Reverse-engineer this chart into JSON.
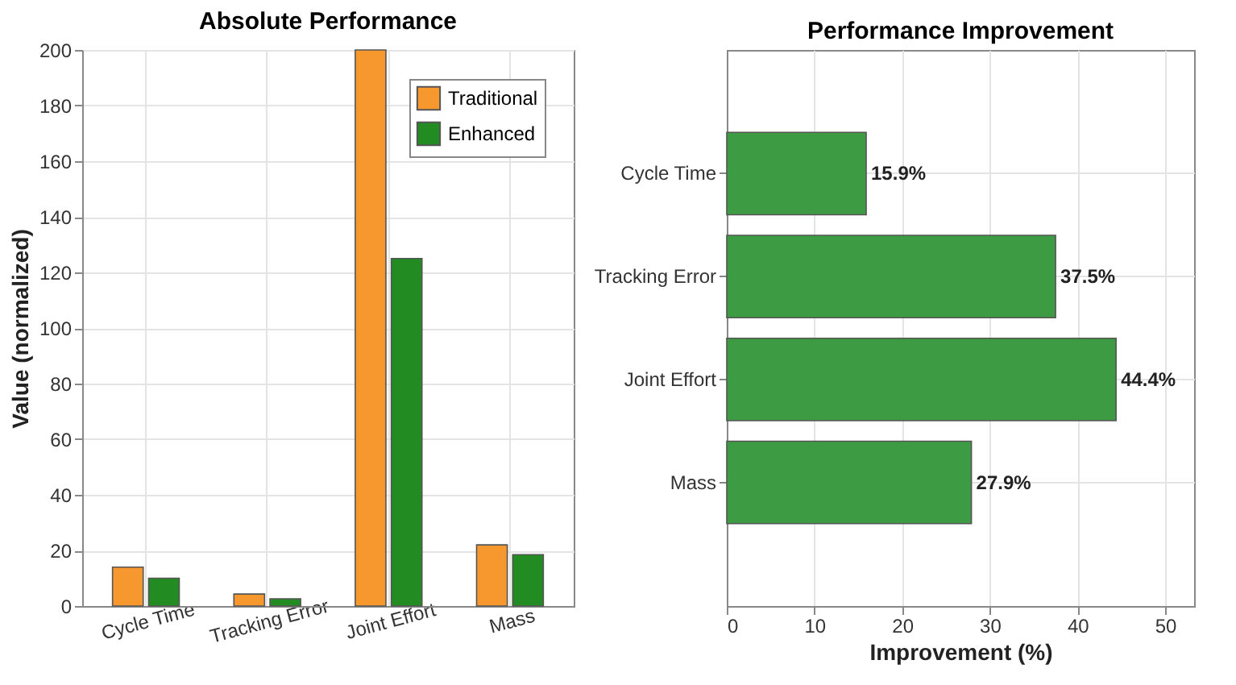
{
  "chart_data": [
    {
      "type": "bar",
      "title": "Absolute Performance",
      "ylabel": "Value (normalized)",
      "categories": [
        "Cycle Time",
        "Tracking Error",
        "Joint Effort",
        "Mass"
      ],
      "series": [
        {
          "name": "Traditional",
          "color": "#f7982f",
          "values": [
            14,
            4.3,
            200,
            22
          ]
        },
        {
          "name": "Enhanced",
          "color": "#228b22",
          "values": [
            10,
            2.6,
            125,
            18.5
          ]
        }
      ],
      "ylim": [
        0,
        200
      ],
      "yticks": [
        0,
        20,
        40,
        60,
        80,
        100,
        120,
        140,
        160,
        180,
        200
      ],
      "grid": true,
      "legend": "top right"
    },
    {
      "type": "bar",
      "orientation": "horizontal",
      "title": "Performance Improvement",
      "xlabel": "Improvement (%)",
      "categories": [
        "Cycle Time",
        "Tracking Error",
        "Joint Effort",
        "Mass"
      ],
      "values": [
        15.9,
        37.5,
        44.4,
        27.9
      ],
      "color": "#3d9b44",
      "value_labels": [
        "15.9%",
        "37.5%",
        "44.4%",
        "27.9%"
      ],
      "xlim": [
        0,
        53.3
      ],
      "xticks": [
        0,
        10,
        20,
        30,
        40,
        50
      ],
      "grid": true
    }
  ]
}
